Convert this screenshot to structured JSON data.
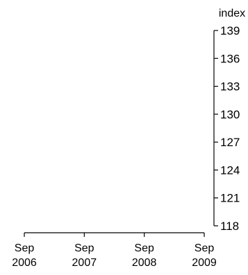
{
  "chart_data": {
    "type": "line",
    "title": "",
    "xlabel": "",
    "ylabel": "index",
    "x_ticks": [
      {
        "line1": "Sep",
        "line2": "2006",
        "date": "2006-09"
      },
      {
        "line1": "Sep",
        "line2": "2007",
        "date": "2007-09"
      },
      {
        "line1": "Sep",
        "line2": "2008",
        "date": "2008-09"
      },
      {
        "line1": "Sep",
        "line2": "2009",
        "date": "2009-09"
      }
    ],
    "xlim": [
      "2006-09",
      "2009-09"
    ],
    "y_ticks": [
      118,
      121,
      124,
      127,
      130,
      133,
      136,
      139
    ],
    "ylim": [
      118,
      139
    ],
    "y_axis_position": "right",
    "grid": false,
    "series": [],
    "colors": {
      "axis": "#000000",
      "text": "#000000",
      "background": "#ffffff"
    }
  }
}
